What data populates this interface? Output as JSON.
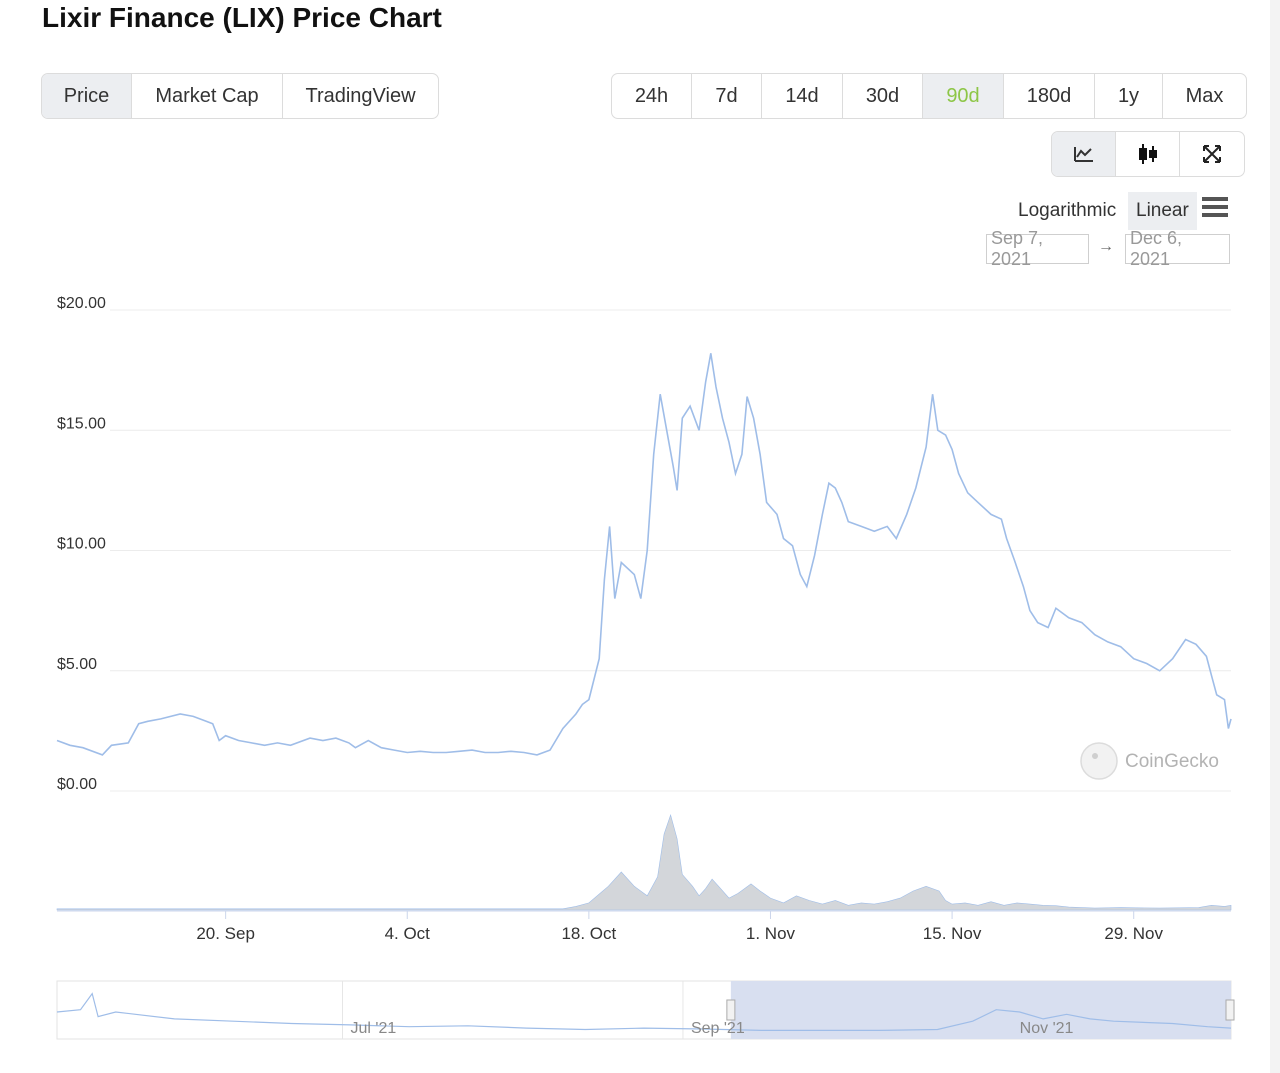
{
  "page": {
    "title": "Lixir Finance (LIX) Price Chart"
  },
  "view_tabs": [
    {
      "label": "Price",
      "active": true
    },
    {
      "label": "Market Cap",
      "active": false
    },
    {
      "label": "TradingView",
      "active": false
    }
  ],
  "range_tabs": [
    {
      "label": "24h",
      "active": false
    },
    {
      "label": "7d",
      "active": false
    },
    {
      "label": "14d",
      "active": false
    },
    {
      "label": "30d",
      "active": false
    },
    {
      "label": "90d",
      "active": true
    },
    {
      "label": "180d",
      "active": false
    },
    {
      "label": "1y",
      "active": false
    },
    {
      "label": "Max",
      "active": false
    }
  ],
  "tools": [
    {
      "icon": "line-chart-icon"
    },
    {
      "icon": "candlestick-icon"
    },
    {
      "icon": "fullscreen-icon"
    }
  ],
  "scale": {
    "log_label": "Logarithmic",
    "linear_label": "Linear",
    "selected": "Linear"
  },
  "date_range": {
    "from": "Sep 7, 2021",
    "arrow": "→",
    "to": "Dec 6, 2021"
  },
  "colors": {
    "line": "#9fbde8",
    "volume": "#d3d6da",
    "accent_green": "#8dc647",
    "navigator_fill": "#d8dff0"
  },
  "watermark": "CoinGecko",
  "chart_data": {
    "type": "line",
    "x_ticks": [
      "20. Sep",
      "4. Oct",
      "18. Oct",
      "1. Nov",
      "15. Nov",
      "29. Nov"
    ],
    "x_tick_days": [
      13,
      27,
      41,
      55,
      69,
      83
    ],
    "y_ticks": [
      "$0.00",
      "$5.00",
      "$10.00",
      "$15.00",
      "$20.00"
    ],
    "ylim": [
      0,
      20
    ],
    "xlim_days": [
      0,
      90.5
    ],
    "series": [
      {
        "kind": "price",
        "points": [
          [
            0,
            2.1
          ],
          [
            1,
            1.9
          ],
          [
            2,
            1.8
          ],
          [
            3.5,
            1.5
          ],
          [
            4.2,
            1.9
          ],
          [
            5.5,
            2.0
          ],
          [
            6.3,
            2.8
          ],
          [
            7,
            2.9
          ],
          [
            8,
            3.0
          ],
          [
            9.5,
            3.2
          ],
          [
            10.5,
            3.1
          ],
          [
            11.5,
            2.9
          ],
          [
            12,
            2.8
          ],
          [
            12.5,
            2.1
          ],
          [
            13,
            2.3
          ],
          [
            14,
            2.1
          ],
          [
            15,
            2.0
          ],
          [
            16,
            1.9
          ],
          [
            17,
            2.0
          ],
          [
            18,
            1.9
          ],
          [
            19.5,
            2.2
          ],
          [
            20.5,
            2.1
          ],
          [
            21.5,
            2.2
          ],
          [
            22.5,
            2.0
          ],
          [
            23,
            1.8
          ],
          [
            24,
            2.1
          ],
          [
            25,
            1.8
          ],
          [
            26,
            1.7
          ],
          [
            27,
            1.6
          ],
          [
            28,
            1.65
          ],
          [
            29,
            1.6
          ],
          [
            30,
            1.6
          ],
          [
            31,
            1.65
          ],
          [
            32,
            1.7
          ],
          [
            33,
            1.6
          ],
          [
            34,
            1.6
          ],
          [
            35,
            1.65
          ],
          [
            36,
            1.6
          ],
          [
            37,
            1.5
          ],
          [
            38,
            1.7
          ],
          [
            39,
            2.6
          ],
          [
            40,
            3.2
          ],
          [
            40.5,
            3.6
          ],
          [
            41,
            3.8
          ],
          [
            41.8,
            5.5
          ],
          [
            42.2,
            8.8
          ],
          [
            42.6,
            11.0
          ],
          [
            43,
            8.0
          ],
          [
            43.5,
            9.5
          ],
          [
            44.5,
            9.0
          ],
          [
            45,
            8.0
          ],
          [
            45.5,
            10.0
          ],
          [
            46,
            14.0
          ],
          [
            46.5,
            16.5
          ],
          [
            47,
            15.0
          ],
          [
            47.5,
            13.5
          ],
          [
            47.8,
            12.5
          ],
          [
            48.2,
            15.5
          ],
          [
            48.8,
            16.0
          ],
          [
            49.5,
            15.0
          ],
          [
            50,
            17.0
          ],
          [
            50.4,
            18.2
          ],
          [
            50.8,
            16.8
          ],
          [
            51.3,
            15.5
          ],
          [
            51.8,
            14.5
          ],
          [
            52.3,
            13.2
          ],
          [
            52.8,
            14.0
          ],
          [
            53.2,
            16.4
          ],
          [
            53.7,
            15.5
          ],
          [
            54.2,
            14.0
          ],
          [
            54.7,
            12.0
          ],
          [
            55.5,
            11.5
          ],
          [
            56,
            10.5
          ],
          [
            56.7,
            10.2
          ],
          [
            57.3,
            9.0
          ],
          [
            57.8,
            8.5
          ],
          [
            58.4,
            9.8
          ],
          [
            59,
            11.5
          ],
          [
            59.5,
            12.8
          ],
          [
            60,
            12.6
          ],
          [
            60.5,
            12.0
          ],
          [
            61,
            11.2
          ],
          [
            62,
            11.0
          ],
          [
            63,
            10.8
          ],
          [
            64,
            11.0
          ],
          [
            64.7,
            10.5
          ],
          [
            65.5,
            11.5
          ],
          [
            66.2,
            12.6
          ],
          [
            67,
            14.3
          ],
          [
            67.5,
            16.5
          ],
          [
            67.9,
            15.0
          ],
          [
            68.5,
            14.8
          ],
          [
            69,
            14.2
          ],
          [
            69.5,
            13.2
          ],
          [
            70.2,
            12.4
          ],
          [
            71,
            12.0
          ],
          [
            72,
            11.5
          ],
          [
            72.8,
            11.3
          ],
          [
            73.2,
            10.5
          ],
          [
            73.8,
            9.6
          ],
          [
            74.5,
            8.5
          ],
          [
            75,
            7.5
          ],
          [
            75.6,
            7.0
          ],
          [
            76.4,
            6.8
          ],
          [
            77,
            7.6
          ],
          [
            78,
            7.2
          ],
          [
            79,
            7.0
          ],
          [
            80,
            6.5
          ],
          [
            81,
            6.2
          ],
          [
            82,
            6.0
          ],
          [
            83,
            5.5
          ],
          [
            84,
            5.3
          ],
          [
            85,
            5.0
          ],
          [
            86,
            5.5
          ],
          [
            87,
            6.3
          ],
          [
            87.8,
            6.1
          ],
          [
            88.6,
            5.6
          ],
          [
            89,
            4.8
          ],
          [
            89.4,
            4.0
          ],
          [
            90,
            3.8
          ],
          [
            90.3,
            2.6
          ],
          [
            90.5,
            3.0
          ]
        ]
      },
      {
        "kind": "volume",
        "points": [
          [
            0,
            0.05
          ],
          [
            39,
            0.05
          ],
          [
            40,
            0.15
          ],
          [
            41,
            0.3
          ],
          [
            42.5,
            1.0
          ],
          [
            43.5,
            1.6
          ],
          [
            44.5,
            1.0
          ],
          [
            45.5,
            0.6
          ],
          [
            46.3,
            1.4
          ],
          [
            46.8,
            3.2
          ],
          [
            47.3,
            4.0
          ],
          [
            47.8,
            3.0
          ],
          [
            48.2,
            1.5
          ],
          [
            49,
            1.0
          ],
          [
            49.5,
            0.6
          ],
          [
            50,
            0.9
          ],
          [
            50.5,
            1.3
          ],
          [
            51,
            1.0
          ],
          [
            51.8,
            0.5
          ],
          [
            52.5,
            0.7
          ],
          [
            53.5,
            1.1
          ],
          [
            54.2,
            0.8
          ],
          [
            55,
            0.5
          ],
          [
            56,
            0.3
          ],
          [
            57,
            0.6
          ],
          [
            58,
            0.4
          ],
          [
            59,
            0.25
          ],
          [
            60,
            0.4
          ],
          [
            61,
            0.2
          ],
          [
            62,
            0.3
          ],
          [
            63,
            0.25
          ],
          [
            64,
            0.35
          ],
          [
            65,
            0.5
          ],
          [
            66,
            0.8
          ],
          [
            67,
            1.0
          ],
          [
            68,
            0.8
          ],
          [
            68.5,
            0.4
          ],
          [
            69,
            0.25
          ],
          [
            70,
            0.3
          ],
          [
            71,
            0.2
          ],
          [
            72,
            0.35
          ],
          [
            73,
            0.2
          ],
          [
            74,
            0.3
          ],
          [
            75,
            0.25
          ],
          [
            76,
            0.2
          ],
          [
            77,
            0.18
          ],
          [
            78,
            0.12
          ],
          [
            80,
            0.08
          ],
          [
            82,
            0.1
          ],
          [
            85,
            0.08
          ],
          [
            88,
            0.1
          ],
          [
            89,
            0.2
          ],
          [
            90,
            0.15
          ],
          [
            90.5,
            0.2
          ]
        ]
      }
    ]
  },
  "navigator": {
    "labels": [
      "Jul '21",
      "Sep '21",
      "Nov '21"
    ],
    "label_pos": [
      0.25,
      0.54,
      0.82
    ],
    "selection": [
      0.574,
      1.0
    ],
    "points": [
      [
        0,
        0.5
      ],
      [
        0.02,
        0.55
      ],
      [
        0.03,
        0.9
      ],
      [
        0.035,
        0.4
      ],
      [
        0.05,
        0.5
      ],
      [
        0.1,
        0.35
      ],
      [
        0.15,
        0.3
      ],
      [
        0.2,
        0.25
      ],
      [
        0.25,
        0.22
      ],
      [
        0.3,
        0.18
      ],
      [
        0.35,
        0.2
      ],
      [
        0.4,
        0.15
      ],
      [
        0.45,
        0.12
      ],
      [
        0.5,
        0.15
      ],
      [
        0.55,
        0.13
      ],
      [
        0.6,
        0.1
      ],
      [
        0.7,
        0.1
      ],
      [
        0.75,
        0.12
      ],
      [
        0.78,
        0.3
      ],
      [
        0.8,
        0.55
      ],
      [
        0.82,
        0.5
      ],
      [
        0.84,
        0.35
      ],
      [
        0.86,
        0.45
      ],
      [
        0.88,
        0.35
      ],
      [
        0.9,
        0.3
      ],
      [
        0.95,
        0.25
      ],
      [
        0.98,
        0.18
      ],
      [
        1.0,
        0.15
      ]
    ]
  }
}
